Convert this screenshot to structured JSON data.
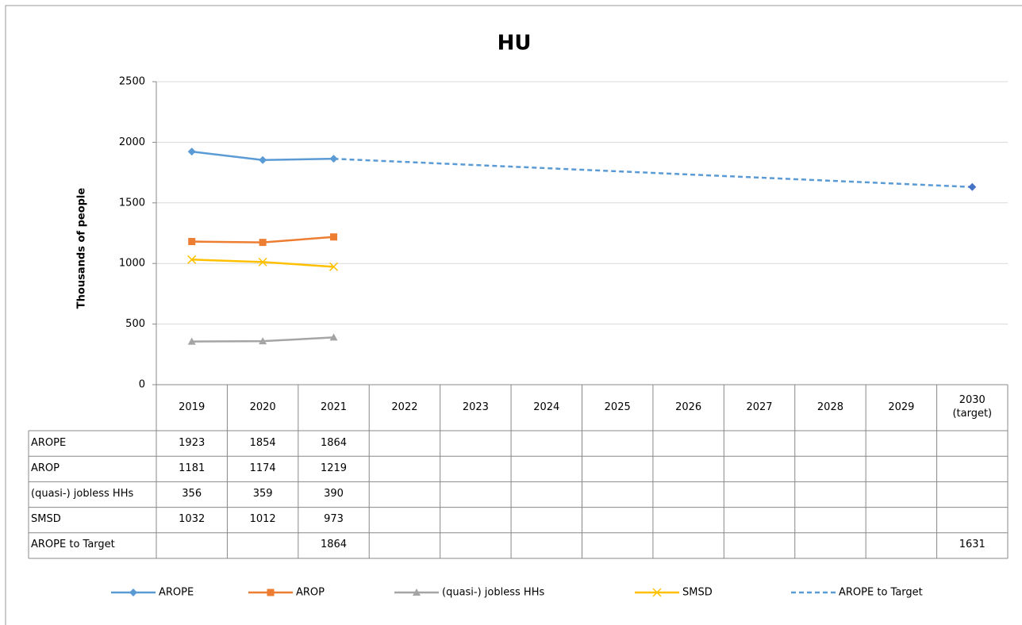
{
  "chart_data": {
    "type": "line",
    "title": "HU",
    "y_label": "Thousands  of people",
    "categories": [
      "2019",
      "2020",
      "2021",
      "2022",
      "2023",
      "2024",
      "2025",
      "2026",
      "2027",
      "2028",
      "2029",
      "2030\n(target)"
    ],
    "ylim": [
      0,
      2500
    ],
    "yticks": [
      0,
      500,
      1000,
      1500,
      2000,
      2500
    ],
    "grid": true,
    "connect_gaps": true,
    "legend": "bottom",
    "series": [
      {
        "name": "AROPE",
        "color": "#5b9bd5",
        "marker": "diamond",
        "dashed": false,
        "values": [
          1923,
          1854,
          1864,
          null,
          null,
          null,
          null,
          null,
          null,
          null,
          null,
          null
        ]
      },
      {
        "name": "AROP",
        "color": "#ed7d31",
        "marker": "square",
        "dashed": false,
        "values": [
          1181,
          1174,
          1219,
          null,
          null,
          null,
          null,
          null,
          null,
          null,
          null,
          null
        ]
      },
      {
        "name": "(quasi-) jobless HHs",
        "color": "#a5a5a5",
        "marker": "triangle",
        "dashed": false,
        "values": [
          356,
          359,
          390,
          null,
          null,
          null,
          null,
          null,
          null,
          null,
          null,
          null
        ]
      },
      {
        "name": "SMSD",
        "color": "#ffc000",
        "marker": "x",
        "dashed": false,
        "values": [
          1032,
          1012,
          973,
          null,
          null,
          null,
          null,
          null,
          null,
          null,
          null,
          null
        ]
      },
      {
        "name": "AROPE to Target",
        "color": "#5b9bd5",
        "marker": "diamond-end",
        "dashed": true,
        "values": [
          null,
          null,
          1864,
          null,
          null,
          null,
          null,
          null,
          null,
          null,
          null,
          1631
        ]
      }
    ]
  }
}
